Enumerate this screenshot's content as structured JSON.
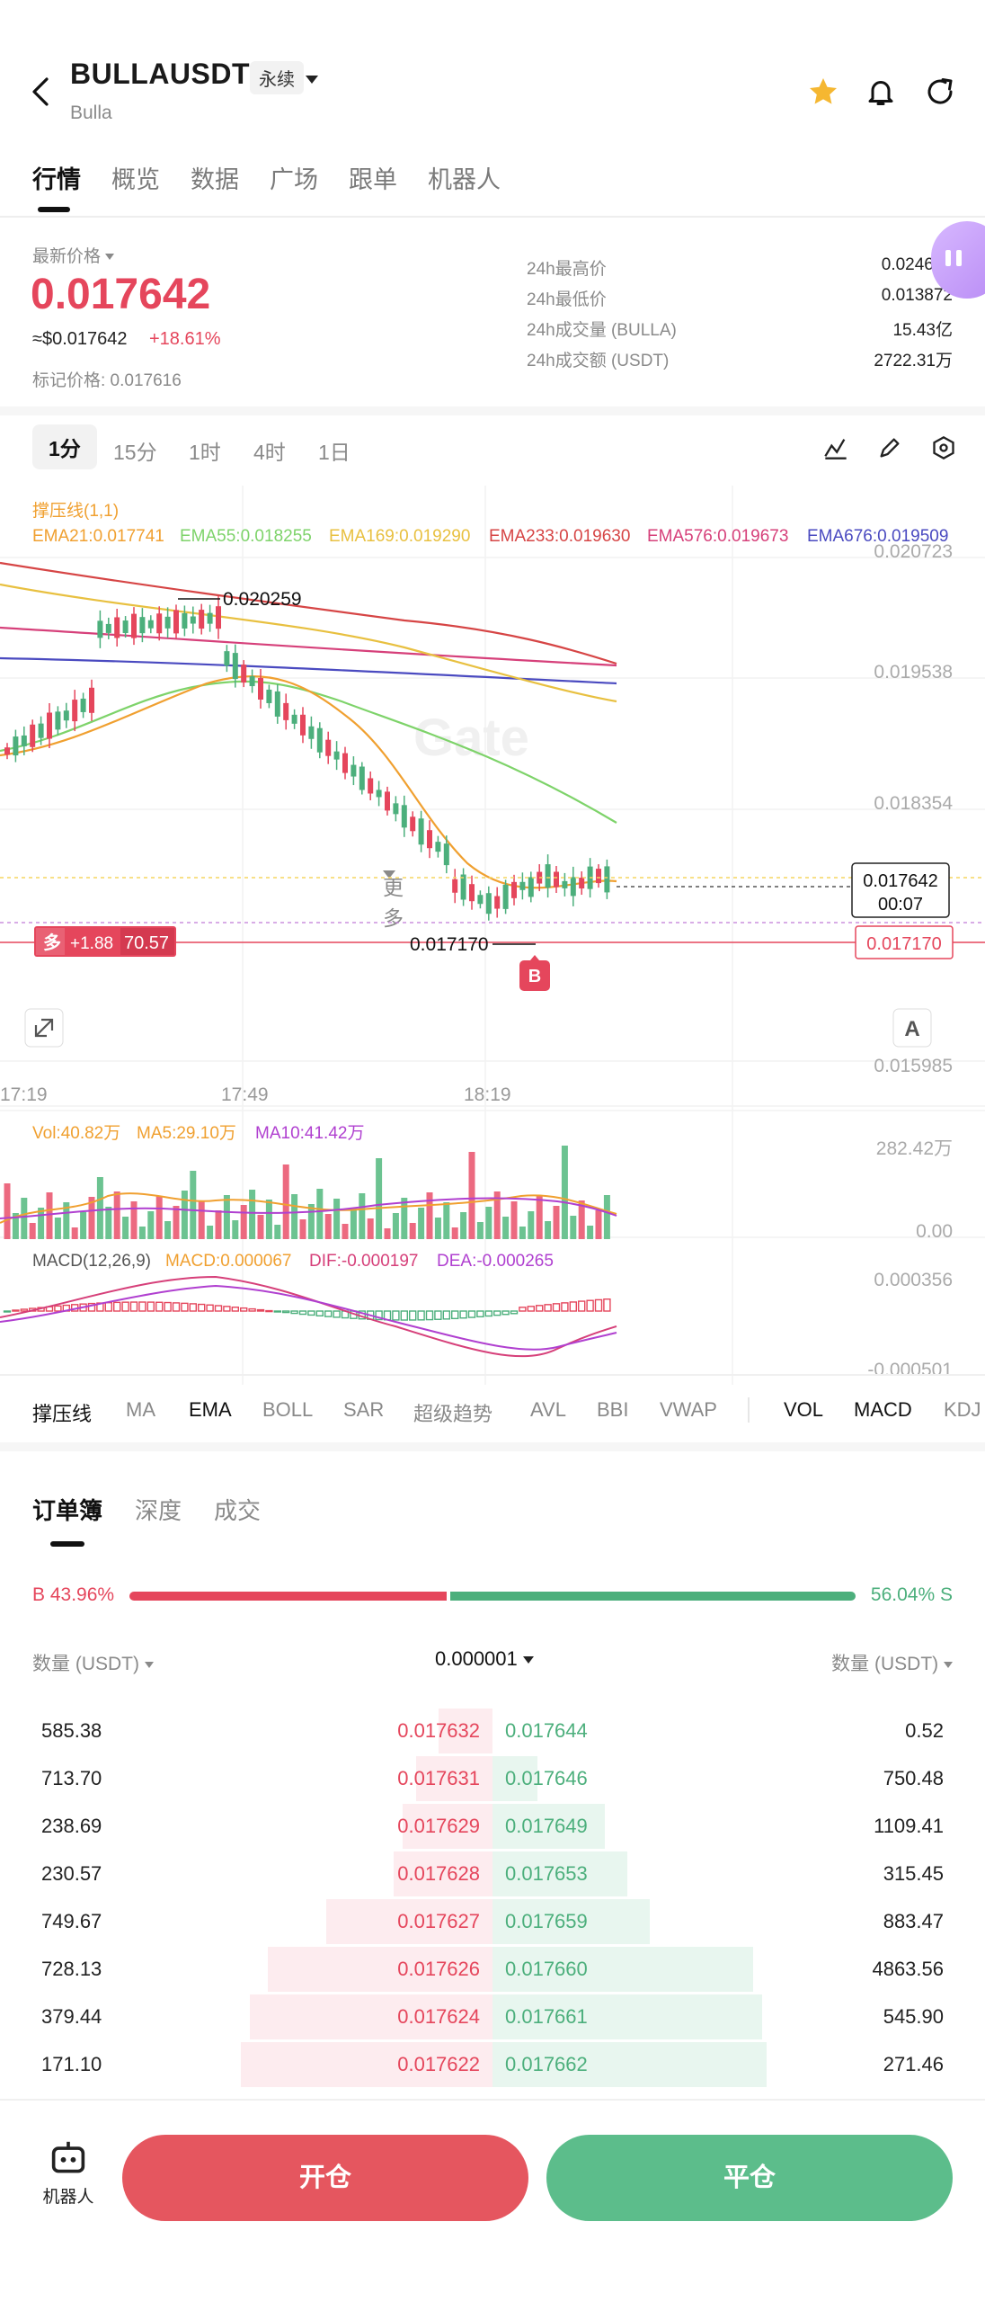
{
  "header": {
    "symbol": "BULLAUSDT",
    "contract_type": "永续",
    "subtitle": "Bulla",
    "icons": [
      "back-arrow-icon",
      "star-icon",
      "bell-icon",
      "share-icon"
    ]
  },
  "nav_tabs": [
    {
      "label": "行情",
      "active": true
    },
    {
      "label": "概览"
    },
    {
      "label": "数据"
    },
    {
      "label": "广场"
    },
    {
      "label": "跟单"
    },
    {
      "label": "机器人"
    }
  ],
  "price": {
    "label": "最新价格",
    "last": "0.017642",
    "usd": "≈$0.017642",
    "change": "+18.61%",
    "mark": "标记价格: 0.017616"
  },
  "stats": [
    {
      "label": "24h最高价",
      "value": "0.024643"
    },
    {
      "label": "24h最低价",
      "value": "0.013872"
    },
    {
      "label": "24h成交量 (BULLA)",
      "value": "15.43亿"
    },
    {
      "label": "24h成交额 (USDT)",
      "value": "2722.31万"
    }
  ],
  "timeframes": [
    {
      "label": "1分",
      "active": true
    },
    {
      "label": "15分"
    },
    {
      "label": "1时"
    },
    {
      "label": "4时"
    },
    {
      "label": "1日"
    },
    {
      "label": "更多"
    }
  ],
  "chart": {
    "indicator_title": "撑压线(1,1)",
    "ema_labels": [
      {
        "text": "EMA21:0.017741",
        "color": "#f0a030"
      },
      {
        "text": "EMA55:0.018255",
        "color": "#7ed36a"
      },
      {
        "text": "EMA169:0.019290",
        "color": "#e8c040"
      },
      {
        "text": "EMA233:0.019630",
        "color": "#d64545"
      },
      {
        "text": "EMA576:0.019673",
        "color": "#d6407a"
      },
      {
        "text": "EMA676:0.019509",
        "color": "#4a4ac0"
      }
    ],
    "price_axis": [
      "0.020723",
      "0.019538",
      "0.018354",
      "0.015985"
    ],
    "time_axis": [
      "17:19",
      "17:49",
      "18:19"
    ],
    "high_marker": "0.020259",
    "low_marker": "0.017170",
    "current_price_box": "0.017642",
    "countdown": "00:07",
    "right_low_box": "0.017170",
    "position": {
      "side": "多",
      "pnl": "+1.88",
      "value": "70.57"
    },
    "buy_marker": "B",
    "auto_label": "A",
    "watermark": "Gate"
  },
  "volume": {
    "vol": "Vol:40.82万",
    "ma5": "MA5:29.10万",
    "ma10": "MA10:41.42万",
    "axis_top": "282.42万",
    "axis_bottom": "0.00"
  },
  "macd": {
    "title": "MACD(12,26,9)",
    "macd": "MACD:0.000067",
    "dif": "DIF:-0.000197",
    "dea": "DEA:-0.000265",
    "axis_top": "0.000356",
    "axis_bottom": "-0.000501"
  },
  "indicator_tabs": [
    {
      "label": "撑压线",
      "active": true
    },
    {
      "label": "MA"
    },
    {
      "label": "EMA",
      "active": true
    },
    {
      "label": "BOLL"
    },
    {
      "label": "SAR"
    },
    {
      "label": "超级趋势"
    },
    {
      "label": "AVL"
    },
    {
      "label": "BBI"
    },
    {
      "label": "VWAP"
    },
    {
      "label": "VOL",
      "active": true
    },
    {
      "label": "MACD",
      "active": true
    },
    {
      "label": "KDJ"
    }
  ],
  "orderbook": {
    "tabs": [
      {
        "label": "订单簿",
        "active": true
      },
      {
        "label": "深度"
      },
      {
        "label": "成交"
      }
    ],
    "buy_ratio": "B 43.96%",
    "sell_ratio": "56.04% S",
    "buy_ratio_value": 43.96,
    "col_left": "数量 (USDT)",
    "precision": "0.000001",
    "col_right": "数量 (USDT)",
    "rows": [
      {
        "bid_qty": "585.38",
        "bid": "0.017632",
        "ask": "0.017644",
        "ask_qty": "0.52",
        "bid_depth": 0.12,
        "ask_depth": 0.0
      },
      {
        "bid_qty": "713.70",
        "bid": "0.017631",
        "ask": "0.017646",
        "ask_qty": "750.48",
        "bid_depth": 0.17,
        "ask_depth": 0.1
      },
      {
        "bid_qty": "238.69",
        "bid": "0.017629",
        "ask": "0.017649",
        "ask_qty": "1109.41",
        "bid_depth": 0.2,
        "ask_depth": 0.25
      },
      {
        "bid_qty": "230.57",
        "bid": "0.017628",
        "ask": "0.017653",
        "ask_qty": "315.45",
        "bid_depth": 0.22,
        "ask_depth": 0.3
      },
      {
        "bid_qty": "749.67",
        "bid": "0.017627",
        "ask": "0.017659",
        "ask_qty": "883.47",
        "bid_depth": 0.37,
        "ask_depth": 0.35
      },
      {
        "bid_qty": "728.13",
        "bid": "0.017626",
        "ask": "0.017660",
        "ask_qty": "4863.56",
        "bid_depth": 0.5,
        "ask_depth": 0.58
      },
      {
        "bid_qty": "379.44",
        "bid": "0.017624",
        "ask": "0.017661",
        "ask_qty": "545.90",
        "bid_depth": 0.54,
        "ask_depth": 0.6
      },
      {
        "bid_qty": "171.10",
        "bid": "0.017622",
        "ask": "0.017662",
        "ask_qty": "271.46",
        "bid_depth": 0.56,
        "ask_depth": 0.61
      }
    ]
  },
  "bottom": {
    "robot": "机器人",
    "open": "开仓",
    "close": "平仓"
  },
  "colors": {
    "up": "#4caf7c",
    "down": "#e5465c",
    "accent": "#f5b731"
  }
}
